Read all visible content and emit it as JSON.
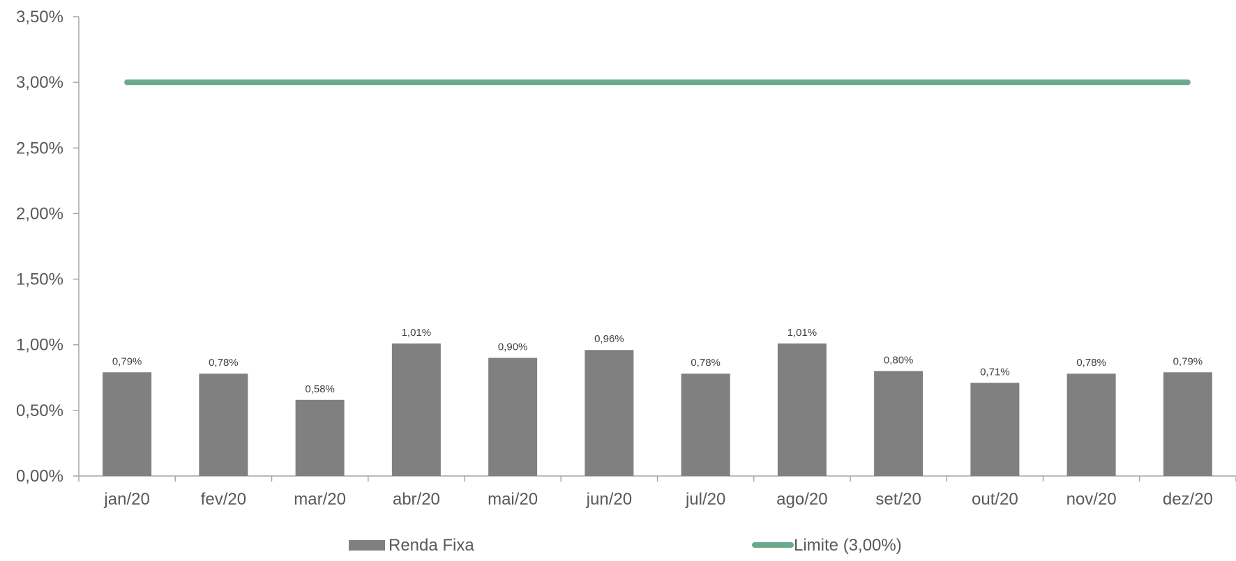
{
  "chart_data": {
    "type": "bar",
    "categories": [
      "jan/20",
      "fev/20",
      "mar/20",
      "abr/20",
      "mai/20",
      "jun/20",
      "jul/20",
      "ago/20",
      "set/20",
      "out/20",
      "nov/20",
      "dez/20"
    ],
    "series": [
      {
        "name": "Renda Fixa",
        "type": "bar",
        "values": [
          0.79,
          0.78,
          0.58,
          1.01,
          0.9,
          0.96,
          0.78,
          1.01,
          0.8,
          0.71,
          0.78,
          0.79
        ],
        "data_labels": [
          "0,79%",
          "0,78%",
          "0,58%",
          "1,01%",
          "0,90%",
          "0,96%",
          "0,78%",
          "1,01%",
          "0,80%",
          "0,71%",
          "0,78%",
          "0,79%"
        ],
        "color": "#808080"
      },
      {
        "name": "Limite (3,00%)",
        "type": "line",
        "values": [
          3.0,
          3.0,
          3.0,
          3.0,
          3.0,
          3.0,
          3.0,
          3.0,
          3.0,
          3.0,
          3.0,
          3.0
        ],
        "color": "#6aaa8a"
      }
    ],
    "title": "",
    "xlabel": "",
    "ylabel": "",
    "ylim": [
      0,
      3.5
    ],
    "y_ticks": [
      0,
      0.5,
      1.0,
      1.5,
      2.0,
      2.5,
      3.0,
      3.5
    ],
    "y_tick_labels": [
      "0,00%",
      "0,50%",
      "1,00%",
      "1,50%",
      "2,00%",
      "2,50%",
      "3,00%",
      "3,50%"
    ],
    "grid": false,
    "legend": "bottom",
    "axis_color": "#a6a6a6"
  }
}
